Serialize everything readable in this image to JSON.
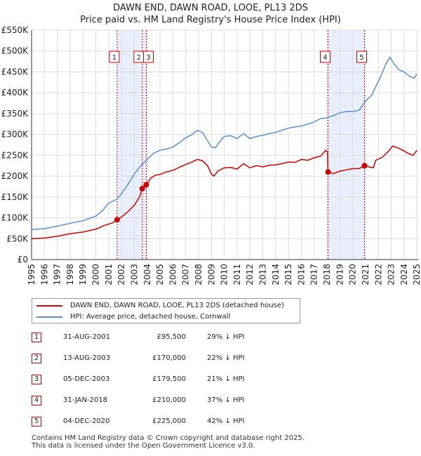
{
  "title_line1": "DAWN END, DAWN ROAD, LOOE, PL13 2DS",
  "title_line2": "Price paid vs. HM Land Registry's House Price Index (HPI)",
  "colors": {
    "property": "#cc0000",
    "hpi": "#5b8fd0",
    "shade": "#e8eefa",
    "vline": "#cc0000"
  },
  "chart_data": {
    "type": "line",
    "title": "DAWN END, DAWN ROAD, LOOE, PL13 2DS — Price paid vs. HM Land Registry's House Price Index (HPI)",
    "xlabel": "",
    "ylabel": "",
    "xlim": [
      1995,
      2025.1
    ],
    "ylim": [
      0,
      550000
    ],
    "x_ticks": [
      1995,
      1996,
      1997,
      1998,
      1999,
      2000,
      2001,
      2002,
      2003,
      2004,
      2005,
      2006,
      2007,
      2008,
      2009,
      2010,
      2011,
      2012,
      2013,
      2014,
      2015,
      2016,
      2017,
      2018,
      2019,
      2020,
      2021,
      2022,
      2023,
      2024,
      2025
    ],
    "y_ticks": [
      0,
      50000,
      100000,
      150000,
      200000,
      250000,
      300000,
      350000,
      400000,
      450000,
      500000,
      550000
    ],
    "y_tick_labels": [
      "£0",
      "£50K",
      "£100K",
      "£150K",
      "£200K",
      "£250K",
      "£300K",
      "£350K",
      "£400K",
      "£450K",
      "£500K",
      "£550K"
    ],
    "shaded_regions": [
      [
        2001.66,
        2003.93
      ],
      [
        2018.08,
        2020.92
      ]
    ],
    "series": [
      {
        "name": "DAWN END, DAWN ROAD, LOOE, PL13 2DS (detached house)",
        "color": "#cc0000",
        "points": [
          [
            1995.0,
            50000
          ],
          [
            1996.0,
            51500
          ],
          [
            1997.0,
            56000
          ],
          [
            1998.0,
            62000
          ],
          [
            1999.0,
            66000
          ],
          [
            2000.0,
            73000
          ],
          [
            2000.7,
            82000
          ],
          [
            2001.3,
            88000
          ],
          [
            2001.66,
            95500
          ],
          [
            2002.0,
            102000
          ],
          [
            2002.5,
            115000
          ],
          [
            2003.0,
            130000
          ],
          [
            2003.4,
            150000
          ],
          [
            2003.62,
            170000
          ],
          [
            2003.93,
            179500
          ],
          [
            2004.3,
            196000
          ],
          [
            2004.7,
            203000
          ],
          [
            2005.0,
            204000
          ],
          [
            2005.5,
            210000
          ],
          [
            2006.0,
            214000
          ],
          [
            2006.5,
            221000
          ],
          [
            2007.0,
            228000
          ],
          [
            2007.5,
            234000
          ],
          [
            2007.9,
            240000
          ],
          [
            2008.3,
            237000
          ],
          [
            2008.7,
            225000
          ],
          [
            2009.0,
            205000
          ],
          [
            2009.2,
            200000
          ],
          [
            2009.5,
            212000
          ],
          [
            2010.0,
            220000
          ],
          [
            2010.5,
            221000
          ],
          [
            2011.0,
            217000
          ],
          [
            2011.5,
            230000
          ],
          [
            2012.0,
            220000
          ],
          [
            2012.5,
            225000
          ],
          [
            2013.0,
            222000
          ],
          [
            2013.5,
            226000
          ],
          [
            2014.0,
            227000
          ],
          [
            2014.5,
            230000
          ],
          [
            2015.0,
            234000
          ],
          [
            2015.5,
            233000
          ],
          [
            2016.0,
            240000
          ],
          [
            2016.5,
            238000
          ],
          [
            2017.0,
            244000
          ],
          [
            2017.5,
            248000
          ],
          [
            2017.9,
            262000
          ],
          [
            2018.05,
            258000
          ],
          [
            2018.08,
            210000
          ],
          [
            2018.5,
            206000
          ],
          [
            2019.0,
            212000
          ],
          [
            2019.5,
            215000
          ],
          [
            2020.0,
            218000
          ],
          [
            2020.5,
            218000
          ],
          [
            2020.92,
            225000
          ],
          [
            2021.3,
            222000
          ],
          [
            2021.6,
            220000
          ],
          [
            2021.8,
            238000
          ],
          [
            2022.3,
            245000
          ],
          [
            2022.8,
            260000
          ],
          [
            2023.1,
            272000
          ],
          [
            2023.5,
            268000
          ],
          [
            2023.9,
            262000
          ],
          [
            2024.3,
            255000
          ],
          [
            2024.7,
            250000
          ],
          [
            2025.0,
            262000
          ]
        ],
        "sales": [
          {
            "label": "1",
            "x": 2001.66,
            "y": 95500
          },
          {
            "label": "2",
            "x": 2003.62,
            "y": 170000
          },
          {
            "label": "3",
            "x": 2003.93,
            "y": 179500
          },
          {
            "label": "4",
            "x": 2018.08,
            "y": 210000
          },
          {
            "label": "5",
            "x": 2020.92,
            "y": 225000
          }
        ]
      },
      {
        "name": "HPI: Average price, detached house, Cornwall",
        "color": "#5b8fd0",
        "points": [
          [
            1995.0,
            72000
          ],
          [
            1996.0,
            74000
          ],
          [
            1997.0,
            80000
          ],
          [
            1998.0,
            87000
          ],
          [
            1999.0,
            93000
          ],
          [
            2000.0,
            104000
          ],
          [
            2000.6,
            120000
          ],
          [
            2001.0,
            135000
          ],
          [
            2001.66,
            145000
          ],
          [
            2002.0,
            158000
          ],
          [
            2002.5,
            180000
          ],
          [
            2003.0,
            205000
          ],
          [
            2003.5,
            225000
          ],
          [
            2004.0,
            240000
          ],
          [
            2004.5,
            255000
          ],
          [
            2005.0,
            262000
          ],
          [
            2005.5,
            265000
          ],
          [
            2006.0,
            270000
          ],
          [
            2006.5,
            280000
          ],
          [
            2007.0,
            292000
          ],
          [
            2007.5,
            300000
          ],
          [
            2007.9,
            310000
          ],
          [
            2008.3,
            305000
          ],
          [
            2008.7,
            285000
          ],
          [
            2009.0,
            270000
          ],
          [
            2009.3,
            268000
          ],
          [
            2009.7,
            285000
          ],
          [
            2010.0,
            295000
          ],
          [
            2010.5,
            297000
          ],
          [
            2011.0,
            290000
          ],
          [
            2011.5,
            302000
          ],
          [
            2012.0,
            290000
          ],
          [
            2012.5,
            295000
          ],
          [
            2013.0,
            298000
          ],
          [
            2013.5,
            302000
          ],
          [
            2014.0,
            305000
          ],
          [
            2014.5,
            310000
          ],
          [
            2015.0,
            315000
          ],
          [
            2015.5,
            318000
          ],
          [
            2016.0,
            320000
          ],
          [
            2016.5,
            325000
          ],
          [
            2017.0,
            330000
          ],
          [
            2017.5,
            338000
          ],
          [
            2018.0,
            340000
          ],
          [
            2018.5,
            345000
          ],
          [
            2019.0,
            352000
          ],
          [
            2019.5,
            355000
          ],
          [
            2020.0,
            355000
          ],
          [
            2020.5,
            358000
          ],
          [
            2021.0,
            380000
          ],
          [
            2021.5,
            395000
          ],
          [
            2021.8,
            415000
          ],
          [
            2022.2,
            440000
          ],
          [
            2022.6,
            470000
          ],
          [
            2022.9,
            485000
          ],
          [
            2023.2,
            470000
          ],
          [
            2023.6,
            455000
          ],
          [
            2024.0,
            450000
          ],
          [
            2024.4,
            440000
          ],
          [
            2024.8,
            435000
          ],
          [
            2025.0,
            445000
          ]
        ]
      }
    ]
  },
  "legend": {
    "property_label": "DAWN END, DAWN ROAD, LOOE, PL13 2DS (detached house)",
    "hpi_label": "HPI: Average price, detached house, Cornwall"
  },
  "sales_table": [
    {
      "num": "1",
      "date": "31-AUG-2001",
      "price": "£95,500",
      "hpi": "29% ↓ HPI"
    },
    {
      "num": "2",
      "date": "13-AUG-2003",
      "price": "£170,000",
      "hpi": "22% ↓ HPI"
    },
    {
      "num": "3",
      "date": "05-DEC-2003",
      "price": "£179,500",
      "hpi": "21% ↓ HPI"
    },
    {
      "num": "4",
      "date": "31-JAN-2018",
      "price": "£210,000",
      "hpi": "37% ↓ HPI"
    },
    {
      "num": "5",
      "date": "04-DEC-2020",
      "price": "£225,000",
      "hpi": "42% ↓ HPI"
    }
  ],
  "footer": {
    "line1": "Contains HM Land Registry data © Crown copyright and database right 2025.",
    "line2": "This data is licensed under the Open Government Licence v3.0."
  }
}
